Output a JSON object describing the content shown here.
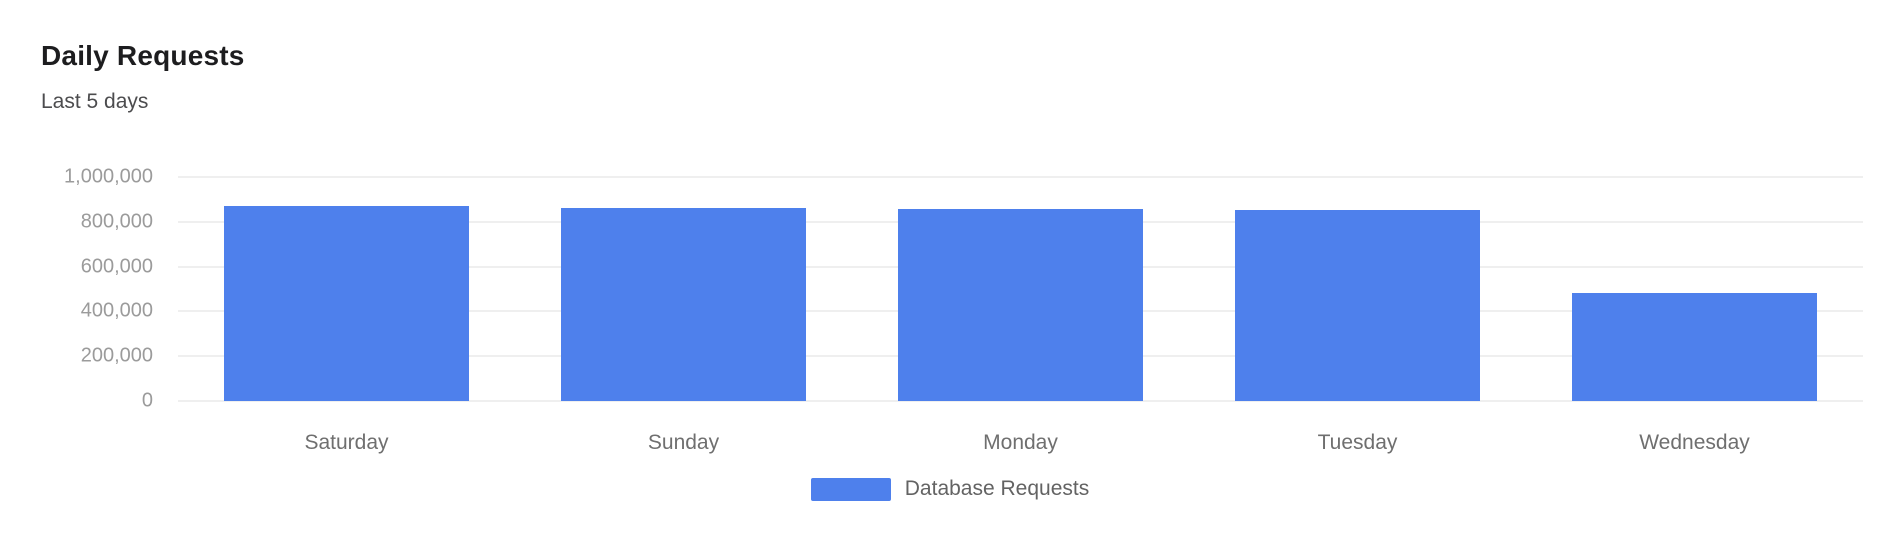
{
  "header": {
    "title": "Daily Requests",
    "subtitle": "Last 5 days"
  },
  "chart_data": {
    "type": "bar",
    "title": "Daily Requests",
    "subtitle": "Last 5 days",
    "categories": [
      "Saturday",
      "Sunday",
      "Monday",
      "Tuesday",
      "Wednesday"
    ],
    "series": [
      {
        "name": "Database Requests",
        "values": [
          870000,
          862000,
          855000,
          853000,
          482000
        ]
      }
    ],
    "xlabel": "",
    "ylabel": "",
    "ylim": [
      0,
      1000000
    ],
    "ytick_step": 200000,
    "ytick_labels": [
      "0",
      "200,000",
      "400,000",
      "600,000",
      "800,000",
      "1,000,000"
    ],
    "grid": true,
    "legend_position": "bottom"
  },
  "legend": {
    "items": [
      {
        "label": "Database Requests",
        "color": "#4e80ec"
      }
    ]
  },
  "colors": {
    "bar": "#4e80ec",
    "grid": "#efefef",
    "title_text": "#1d1d1f",
    "subtitle_text": "#4c4c4e",
    "y_tick_text": "#9b9b9b",
    "x_tick_text": "#6f6f6f",
    "legend_text": "#636363",
    "background": "#ffffff"
  }
}
